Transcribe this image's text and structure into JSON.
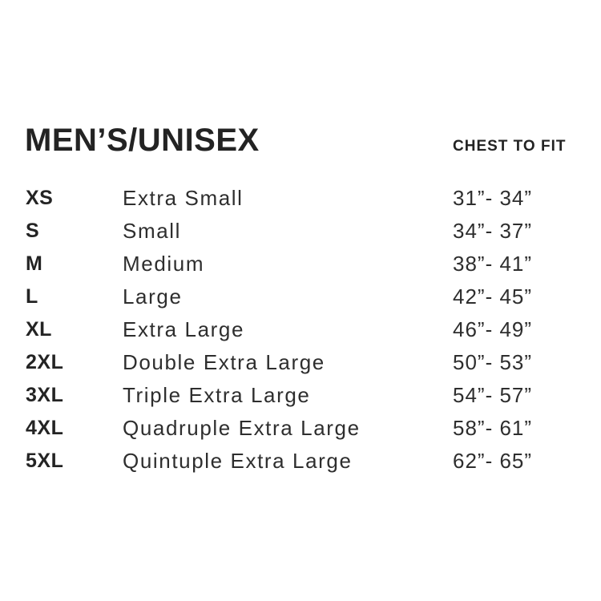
{
  "page": {
    "background": "#ffffff",
    "heading_color": "#232323",
    "text_color": "#2e2e2e"
  },
  "header": {
    "title": "MEN’S/UNISEX",
    "measure_label": "CHEST TO FIT"
  },
  "rows": [
    {
      "code": "XS",
      "name": "Extra Small",
      "range": "31”- 34”"
    },
    {
      "code": "S",
      "name": "Small",
      "range": "34”- 37”"
    },
    {
      "code": "M",
      "name": "Medium",
      "range": "38”- 41”"
    },
    {
      "code": "L",
      "name": "Large",
      "range": "42”- 45”"
    },
    {
      "code": "XL",
      "name": "Extra Large",
      "range": "46”- 49”"
    },
    {
      "code": "2XL",
      "name": "Double Extra Large",
      "range": "50”- 53”"
    },
    {
      "code": "3XL",
      "name": "Triple Extra Large",
      "range": "54”- 57”"
    },
    {
      "code": "4XL",
      "name": "Quadruple Extra Large",
      "range": "58”- 61”"
    },
    {
      "code": "5XL",
      "name": "Quintuple Extra Large",
      "range": "62”- 65”"
    }
  ]
}
